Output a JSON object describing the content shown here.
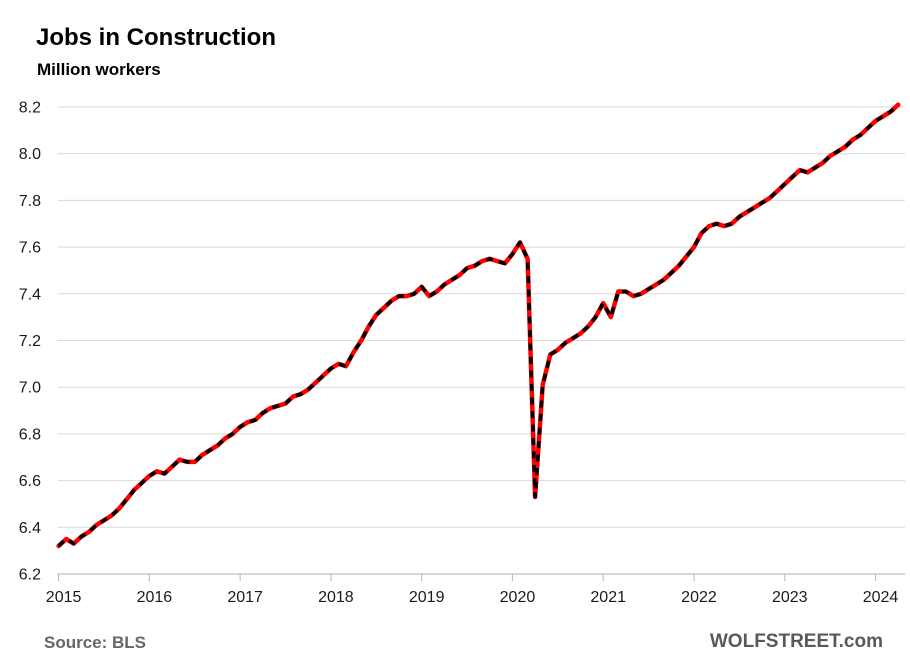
{
  "header": {
    "title": "Jobs in Construction",
    "subtitle": "Million workers"
  },
  "footer": {
    "source_label": "Source: BLS",
    "watermark": "WOLFSTREET.com"
  },
  "chart_data": {
    "type": "line",
    "title": "Jobs in Construction",
    "subtitle": "Million workers",
    "xlabel": "",
    "ylabel": "Million workers",
    "frequency": "monthly",
    "start_month": "2015-01",
    "end_month": "2024-04",
    "x_tick_labels": [
      "2015",
      "2016",
      "2017",
      "2018",
      "2019",
      "2020",
      "2021",
      "2022",
      "2023",
      "2024"
    ],
    "ylim": [
      6.2,
      8.2
    ],
    "ytick_step": 0.2,
    "grid": "horizontal",
    "legend": "none",
    "line_color": "#ff0000",
    "marker_color": "#000000",
    "grid_color": "#d9d9d9",
    "values": [
      6.32,
      6.35,
      6.33,
      6.36,
      6.38,
      6.41,
      6.43,
      6.45,
      6.48,
      6.52,
      6.56,
      6.59,
      6.62,
      6.64,
      6.63,
      6.66,
      6.69,
      6.68,
      6.68,
      6.71,
      6.73,
      6.75,
      6.78,
      6.8,
      6.83,
      6.85,
      6.86,
      6.89,
      6.91,
      6.92,
      6.93,
      6.96,
      6.97,
      6.99,
      7.02,
      7.05,
      7.08,
      7.1,
      7.09,
      7.15,
      7.2,
      7.26,
      7.31,
      7.34,
      7.37,
      7.39,
      7.39,
      7.4,
      7.43,
      7.39,
      7.41,
      7.44,
      7.46,
      7.48,
      7.51,
      7.52,
      7.54,
      7.55,
      7.54,
      7.53,
      7.57,
      7.62,
      7.55,
      6.53,
      7.01,
      7.14,
      7.16,
      7.19,
      7.21,
      7.23,
      7.26,
      7.3,
      7.36,
      7.3,
      7.41,
      7.41,
      7.39,
      7.4,
      7.42,
      7.44,
      7.46,
      7.49,
      7.52,
      7.56,
      7.6,
      7.66,
      7.69,
      7.7,
      7.69,
      7.7,
      7.73,
      7.75,
      7.77,
      7.79,
      7.81,
      7.84,
      7.87,
      7.9,
      7.93,
      7.92,
      7.94,
      7.96,
      7.99,
      8.01,
      8.03,
      8.06,
      8.08,
      8.11,
      8.14,
      8.16,
      8.18,
      8.21
    ]
  }
}
